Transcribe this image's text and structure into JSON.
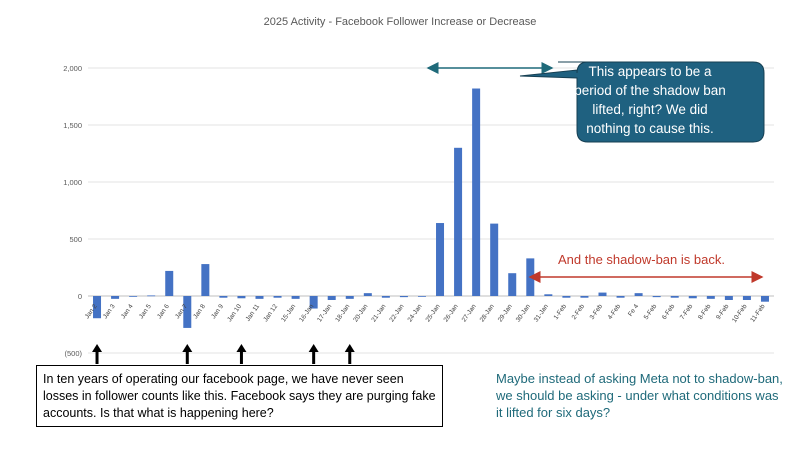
{
  "colors": {
    "bar": "#4472c4",
    "callout_fill": "#1f6180",
    "back_arrow": "#c0392b",
    "top_arrow": "#1f6a7a",
    "question_text": "#1f6a7a"
  },
  "chart_data": {
    "type": "bar",
    "title": "2025 Activity - Facebook Follower Increase or Decrease",
    "xlabel": "",
    "ylabel": "",
    "ylim": [
      -500,
      2000
    ],
    "yticks": [
      2000,
      1500,
      1000,
      500,
      0,
      -500
    ],
    "ytick_labels": [
      "2,000",
      "1,500",
      "1,000",
      "500",
      "0",
      "(500)"
    ],
    "grid": true,
    "legend": "none",
    "categories": [
      "Jan 2",
      "Jan 3",
      "Jan 4",
      "Jan 5",
      "Jan 6",
      "Jan 7",
      "Jan 8",
      "Jan 9",
      "Jan 10",
      "Jan 11",
      "Jan 12",
      "15-Jan",
      "16-Jan",
      "17-Jan",
      "18-Jan",
      "20-Jan",
      "21-Jan",
      "22-Jan",
      "24-Jan",
      "25-Jan",
      "26-Jan",
      "27-Jan",
      "28-Jan",
      "29-Jan",
      "30-Jan",
      "31-Jan",
      "1-Feb",
      "2-Feb",
      "3-Feb",
      "4-Feb",
      "Fe 4",
      "5-Feb",
      "6-Feb",
      "7-Feb",
      "8-Feb",
      "9-Feb",
      "10-Feb",
      "11-Feb"
    ],
    "tick_labels": [
      "Jan 2",
      "Jan 3",
      "Jan 4",
      "Jan 5",
      "Jan 6",
      "Jan 7",
      "Jan 8",
      "Jan 9",
      "Jan 10",
      "Jan 11",
      "Jan 12",
      "15-Jan",
      "16-Jan",
      "17-Jan",
      "18-Jan",
      "20-Jan",
      "21-Jan",
      "22-Jan",
      "24-Jan",
      "25-Jan",
      "26-Jan",
      "27-Jan",
      "28-Jan",
      "29-Jan",
      "30-Jan",
      "31-Jan",
      "1-Feb",
      "2-Feb",
      "3-Feb",
      "4-Feb",
      "Fe 4",
      "5-Feb",
      "6-Feb",
      "7-Feb",
      "8-Feb",
      "9-Feb",
      "10-Feb",
      "11-Feb"
    ],
    "values": [
      -195,
      -25,
      -5,
      5,
      220,
      -280,
      280,
      -15,
      -20,
      -25,
      -15,
      -25,
      -110,
      -35,
      -25,
      25,
      -15,
      -10,
      -5,
      640,
      1300,
      1820,
      635,
      200,
      330,
      15,
      -15,
      -15,
      30,
      -15,
      25,
      -10,
      -15,
      -20,
      -25,
      -35,
      -35,
      -50
    ]
  },
  "annotations": {
    "callout_lines": [
      "This appears to be a",
      "period of the shadow ban",
      "lifted, right?  We did",
      "nothing to cause this."
    ],
    "shadow_back": "And the shadow-ban is back.",
    "note_box": "In ten years of operating our facebook page, we have never seen losses in follower counts like this.  Facebook says they are purging fake accounts.  Is that what is happening here?",
    "question": "Maybe instead of asking Meta not to shadow-ban, we should be asking - under what conditions was it lifted for six days?",
    "bottom_arrow_indices": [
      0,
      5,
      8,
      12,
      14
    ]
  }
}
